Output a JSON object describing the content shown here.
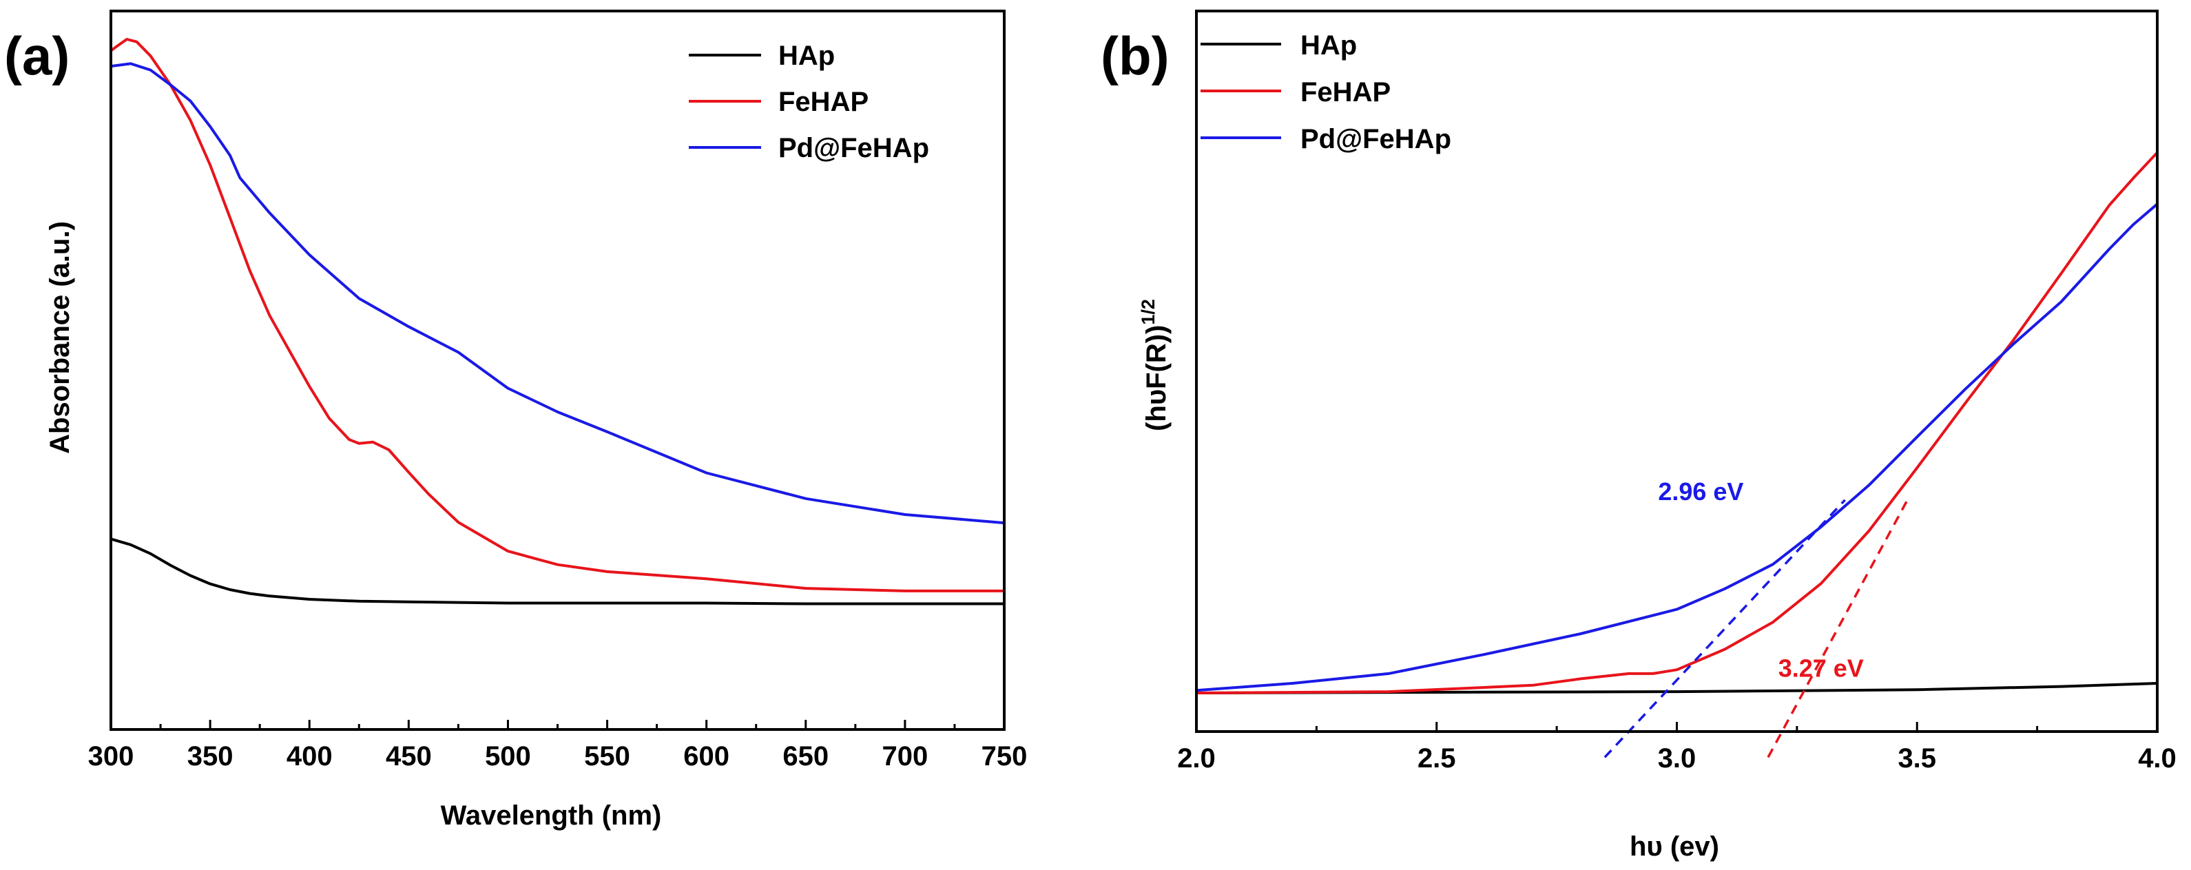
{
  "chart_data": [
    {
      "panel_label": "(a)",
      "type": "line",
      "xlabel": "Wavelength (nm)",
      "ylabel": "Absorbance (a.u.)",
      "xlim": [
        300,
        750
      ],
      "ylim": [
        0,
        1
      ],
      "x_ticks": [
        300,
        350,
        400,
        450,
        500,
        550,
        600,
        650,
        700,
        750
      ],
      "y_ticks_labeled": false,
      "legend_position": "top-right",
      "series": [
        {
          "name": "HAp",
          "color": "#000000",
          "x": [
            300,
            310,
            320,
            330,
            340,
            350,
            360,
            370,
            380,
            400,
            425,
            450,
            475,
            500,
            550,
            600,
            650,
            700,
            750
          ],
          "y": [
            0.237,
            0.228,
            0.214,
            0.196,
            0.18,
            0.167,
            0.158,
            0.152,
            0.148,
            0.143,
            0.14,
            0.139,
            0.138,
            0.137,
            0.137,
            0.137,
            0.136,
            0.136,
            0.136
          ]
        },
        {
          "name": "FeHAP",
          "color": "#e8141b",
          "x": [
            300,
            303,
            308,
            313,
            320,
            330,
            340,
            350,
            360,
            370,
            380,
            390,
            400,
            410,
            420,
            425,
            432,
            440,
            450,
            460,
            475,
            500,
            525,
            550,
            600,
            650,
            700,
            750
          ],
          "y": [
            0.998,
            1.005,
            1.016,
            1.012,
            0.99,
            0.945,
            0.89,
            0.82,
            0.738,
            0.655,
            0.585,
            0.53,
            0.475,
            0.425,
            0.392,
            0.386,
            0.388,
            0.376,
            0.341,
            0.307,
            0.263,
            0.218,
            0.197,
            0.186,
            0.175,
            0.16,
            0.156,
            0.156
          ]
        },
        {
          "name": "Pd@FeHAp",
          "color": "#1a1ae6",
          "x": [
            300,
            310,
            320,
            330,
            340,
            350,
            360,
            365,
            380,
            400,
            425,
            450,
            475,
            500,
            525,
            550,
            600,
            650,
            700,
            750
          ],
          "y": [
            0.974,
            0.978,
            0.968,
            0.945,
            0.92,
            0.88,
            0.835,
            0.8,
            0.745,
            0.68,
            0.612,
            0.568,
            0.528,
            0.472,
            0.435,
            0.404,
            0.34,
            0.3,
            0.275,
            0.262
          ]
        }
      ]
    },
    {
      "panel_label": "(b)",
      "type": "line",
      "xlabel": "hυ (ev)",
      "ylabel_main": "(hυF(R))",
      "ylabel_sup": "1/2",
      "xlim": [
        2.0,
        4.0
      ],
      "ylim": [
        0,
        1
      ],
      "x_ticks": [
        "2.0",
        "2.5",
        "3.0",
        "3.5",
        "4.0"
      ],
      "y_ticks_labeled": false,
      "legend_position": "top-left",
      "series": [
        {
          "name": "HAp",
          "color": "#000000",
          "x": [
            2.0,
            2.5,
            3.0,
            3.5,
            3.8,
            4.0
          ],
          "y": [
            0.0,
            0.001,
            0.002,
            0.005,
            0.01,
            0.015
          ]
        },
        {
          "name": "FeHAP",
          "color": "#e8141b",
          "x": [
            2.0,
            2.4,
            2.7,
            2.8,
            2.9,
            2.95,
            3.0,
            3.1,
            3.2,
            3.3,
            3.4,
            3.5,
            3.6,
            3.7,
            3.8,
            3.9,
            3.95,
            4.0
          ],
          "y": [
            0.0,
            0.002,
            0.012,
            0.022,
            0.03,
            0.03,
            0.036,
            0.068,
            0.11,
            0.17,
            0.252,
            0.35,
            0.45,
            0.548,
            0.652,
            0.758,
            0.8,
            0.84
          ]
        },
        {
          "name": "Pd@FeHAp",
          "color": "#1a1ae6",
          "x": [
            2.0,
            2.2,
            2.4,
            2.6,
            2.8,
            3.0,
            3.1,
            3.2,
            3.3,
            3.4,
            3.5,
            3.6,
            3.7,
            3.8,
            3.9,
            3.95,
            4.0
          ],
          "y": [
            0.004,
            0.015,
            0.03,
            0.06,
            0.092,
            0.13,
            0.162,
            0.2,
            0.258,
            0.323,
            0.398,
            0.472,
            0.542,
            0.608,
            0.69,
            0.728,
            0.76
          ]
        }
      ],
      "tangent_lines": [
        {
          "color": "#1a1ae6",
          "x": [
            2.85,
            3.35
          ],
          "y": [
            -0.1,
            0.3
          ]
        },
        {
          "color": "#e8141b",
          "x": [
            3.19,
            3.48
          ],
          "y": [
            -0.1,
            0.3
          ]
        }
      ],
      "annotations": [
        {
          "text": "2.96 eV",
          "color": "#1a1ae6",
          "x": 3.05,
          "y": 0.3
        },
        {
          "text": "3.27 eV",
          "color": "#e8141b",
          "x": 3.3,
          "y": 0.025
        }
      ]
    }
  ]
}
